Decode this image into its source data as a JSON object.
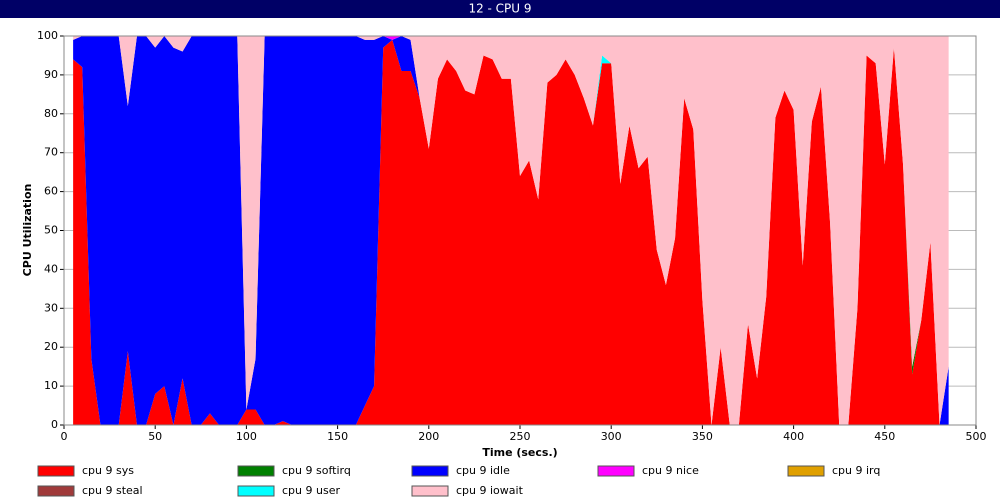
{
  "chart_data": {
    "type": "stacked_area",
    "title": "12 - CPU 9",
    "xlabel": "Time (secs.)",
    "ylabel": "CPU Utilization",
    "x": [
      5,
      10,
      15,
      20,
      25,
      30,
      35,
      40,
      45,
      50,
      55,
      60,
      65,
      70,
      75,
      80,
      85,
      90,
      95,
      100,
      105,
      110,
      115,
      120,
      125,
      130,
      135,
      140,
      145,
      150,
      155,
      160,
      165,
      170,
      175,
      180,
      185,
      190,
      195,
      200,
      205,
      210,
      215,
      220,
      225,
      230,
      235,
      240,
      245,
      250,
      255,
      260,
      265,
      270,
      275,
      280,
      285,
      290,
      295,
      300,
      305,
      310,
      315,
      320,
      325,
      330,
      335,
      340,
      345,
      350,
      355,
      360,
      365,
      370,
      375,
      380,
      385,
      390,
      395,
      400,
      405,
      410,
      415,
      420,
      425,
      430,
      435,
      440,
      445,
      450,
      455,
      460,
      465,
      470,
      475,
      480,
      485
    ],
    "xlim": [
      0,
      500
    ],
    "xticks": [
      0,
      50,
      100,
      150,
      200,
      250,
      300,
      350,
      400,
      450,
      500
    ],
    "ylim": [
      0,
      100
    ],
    "yticks": [
      0,
      10,
      20,
      30,
      40,
      50,
      60,
      70,
      80,
      90,
      100
    ],
    "grid": true,
    "series": [
      {
        "name": "cpu 9 sys",
        "color": "#ff0000",
        "values": [
          94,
          92,
          17,
          0,
          0,
          0,
          19,
          0,
          0,
          8,
          10,
          0,
          12,
          0,
          0,
          3,
          0,
          0,
          0,
          4,
          4,
          0,
          0,
          1,
          0,
          0,
          0,
          0,
          0,
          0,
          0,
          0,
          5,
          10,
          97,
          99,
          91,
          91,
          84,
          71,
          89,
          94,
          91,
          86,
          85,
          95,
          94,
          89,
          89,
          64,
          68,
          58,
          88,
          90,
          94,
          90,
          84,
          77,
          93,
          93,
          62,
          77,
          66,
          69,
          45,
          36,
          48,
          84,
          76,
          32,
          0,
          20,
          0,
          0,
          26,
          12,
          33,
          79,
          86,
          81,
          41,
          78,
          87,
          52,
          0,
          0,
          30,
          95,
          93,
          67,
          97,
          67,
          13,
          27,
          47,
          0,
          0
        ]
      },
      {
        "name": "cpu 9 softirq",
        "color": "#008000",
        "values": [
          0,
          0,
          0,
          0,
          0,
          0,
          0,
          0,
          0,
          0,
          0,
          0,
          0,
          0,
          0,
          0,
          0,
          0,
          0,
          0,
          0,
          0,
          0,
          0,
          0,
          0,
          0,
          0,
          0,
          0,
          0,
          0,
          0,
          0,
          0,
          0,
          0,
          0,
          0,
          0,
          0,
          0,
          0,
          0,
          0,
          0,
          0,
          0,
          0,
          0,
          0,
          0,
          0,
          0,
          0,
          0,
          0,
          0,
          0,
          0,
          0,
          0,
          0,
          0,
          0,
          0,
          0,
          0,
          0,
          0,
          0,
          0,
          0,
          0,
          0,
          0,
          0,
          0,
          0,
          0,
          0,
          0,
          0,
          0,
          0,
          0,
          0,
          0,
          0,
          0,
          0,
          0,
          2,
          0,
          0,
          0,
          0
        ]
      },
      {
        "name": "cpu 9 idle",
        "color": "#0000ff",
        "values": [
          5,
          8,
          83,
          100,
          100,
          100,
          63,
          100,
          100,
          89,
          90,
          97,
          84,
          100,
          100,
          97,
          100,
          100,
          100,
          0,
          13,
          100,
          100,
          99,
          100,
          100,
          100,
          100,
          100,
          100,
          100,
          100,
          94,
          89,
          3,
          0,
          9,
          8,
          0,
          0,
          0,
          0,
          0,
          0,
          0,
          0,
          0,
          0,
          0,
          0,
          0,
          0,
          0,
          0,
          0,
          0,
          0,
          0,
          0,
          0,
          0,
          0,
          0,
          0,
          0,
          0,
          0,
          0,
          0,
          0,
          0,
          0,
          0,
          0,
          0,
          0,
          0,
          0,
          0,
          0,
          0,
          0,
          0,
          0,
          0,
          0,
          0,
          0,
          0,
          0,
          0,
          0,
          0,
          0,
          0,
          0,
          15
        ]
      },
      {
        "name": "cpu 9 nice",
        "color": "#ff00ff",
        "values": [
          0,
          0,
          0,
          0,
          0,
          0,
          0,
          0,
          0,
          0,
          0,
          0,
          0,
          0,
          0,
          0,
          0,
          0,
          0,
          0,
          0,
          0,
          0,
          0,
          0,
          0,
          0,
          0,
          0,
          0,
          0,
          0,
          0,
          0,
          0,
          1,
          0,
          0,
          0,
          0,
          0,
          0,
          0,
          0,
          0,
          0,
          0,
          0,
          0,
          0,
          0,
          0,
          0,
          0,
          0,
          0,
          0,
          0,
          0,
          0,
          0,
          0,
          0,
          0,
          0,
          0,
          0,
          0,
          0,
          0,
          0,
          0,
          0,
          0,
          0,
          0,
          0,
          0,
          0,
          0,
          0,
          0,
          0,
          0,
          0,
          0,
          0,
          0,
          0,
          0,
          0,
          0,
          0,
          0,
          0,
          0,
          0
        ]
      },
      {
        "name": "cpu 9 irq",
        "color": "#e0a000",
        "values": [
          0,
          0,
          0,
          0,
          0,
          0,
          0,
          0,
          0,
          0,
          0,
          0,
          0,
          0,
          0,
          0,
          0,
          0,
          0,
          0,
          0,
          0,
          0,
          0,
          0,
          0,
          0,
          0,
          0,
          0,
          0,
          0,
          0,
          0,
          0,
          0,
          0,
          0,
          0,
          0,
          0,
          0,
          0,
          0,
          0,
          0,
          0,
          0,
          0,
          0,
          0,
          0,
          0,
          0,
          0,
          0,
          0,
          0,
          0,
          0,
          0,
          0,
          0,
          0,
          0,
          0,
          0,
          0,
          0,
          0,
          0,
          0,
          0,
          0,
          0,
          0,
          0,
          0,
          0,
          0,
          0,
          0,
          0,
          0,
          0,
          0,
          0,
          0,
          0,
          0,
          0,
          0,
          0,
          0,
          0,
          0,
          0
        ]
      },
      {
        "name": "cpu 9 steal",
        "color": "#a03a3a",
        "values": [
          0,
          0,
          0,
          0,
          0,
          0,
          0,
          0,
          0,
          0,
          0,
          0,
          0,
          0,
          0,
          0,
          0,
          0,
          0,
          0,
          0,
          0,
          0,
          0,
          0,
          0,
          0,
          0,
          0,
          0,
          0,
          0,
          0,
          0,
          0,
          0,
          0,
          0,
          0,
          0,
          0,
          0,
          0,
          0,
          0,
          0,
          0,
          0,
          0,
          0,
          0,
          0,
          0,
          0,
          0,
          0,
          0,
          0,
          0,
          0,
          0,
          0,
          0,
          0,
          0,
          0,
          0,
          0,
          0,
          0,
          0,
          0,
          0,
          0,
          0,
          0,
          0,
          0,
          0,
          0,
          0,
          0,
          0,
          0,
          0,
          0,
          0,
          0,
          0,
          0,
          0,
          0,
          0,
          0,
          0,
          0,
          0
        ]
      },
      {
        "name": "cpu 9 user",
        "color": "#00ffff",
        "values": [
          0,
          0,
          0,
          0,
          0,
          0,
          0,
          0,
          0,
          0,
          0,
          0,
          0,
          0,
          0,
          0,
          0,
          0,
          0,
          0,
          0,
          0,
          0,
          0,
          0,
          0,
          0,
          0,
          0,
          0,
          0,
          0,
          0,
          0,
          0,
          0,
          0,
          0,
          0,
          0,
          0,
          0,
          0,
          0,
          0,
          0,
          0,
          0,
          0,
          0,
          0,
          0,
          0,
          0,
          0,
          0,
          0,
          0,
          2,
          0,
          0,
          0,
          0,
          0,
          0,
          0,
          0,
          0,
          0,
          0,
          0,
          0,
          0,
          0,
          0,
          0,
          0,
          0,
          0,
          0,
          0,
          0,
          0,
          0,
          0,
          0,
          0,
          0,
          0,
          0,
          0,
          0,
          0,
          0,
          0,
          0,
          0
        ]
      },
      {
        "name": "cpu 9 iowait",
        "color": "#ffc0cb",
        "values": [
          1,
          0,
          0,
          0,
          0,
          0,
          18,
          0,
          0,
          3,
          0,
          3,
          4,
          0,
          0,
          0,
          0,
          0,
          0,
          96,
          83,
          0,
          0,
          0,
          0,
          0,
          0,
          0,
          0,
          0,
          0,
          0,
          1,
          1,
          0,
          0,
          0,
          1,
          16,
          29,
          11,
          6,
          9,
          14,
          15,
          5,
          6,
          11,
          11,
          36,
          32,
          42,
          12,
          10,
          6,
          10,
          16,
          23,
          5,
          7,
          38,
          23,
          34,
          31,
          55,
          64,
          52,
          16,
          24,
          68,
          100,
          80,
          100,
          100,
          74,
          88,
          67,
          21,
          14,
          19,
          59,
          22,
          13,
          48,
          100,
          100,
          70,
          5,
          7,
          33,
          3,
          33,
          85,
          73,
          53,
          100,
          85
        ]
      }
    ]
  }
}
